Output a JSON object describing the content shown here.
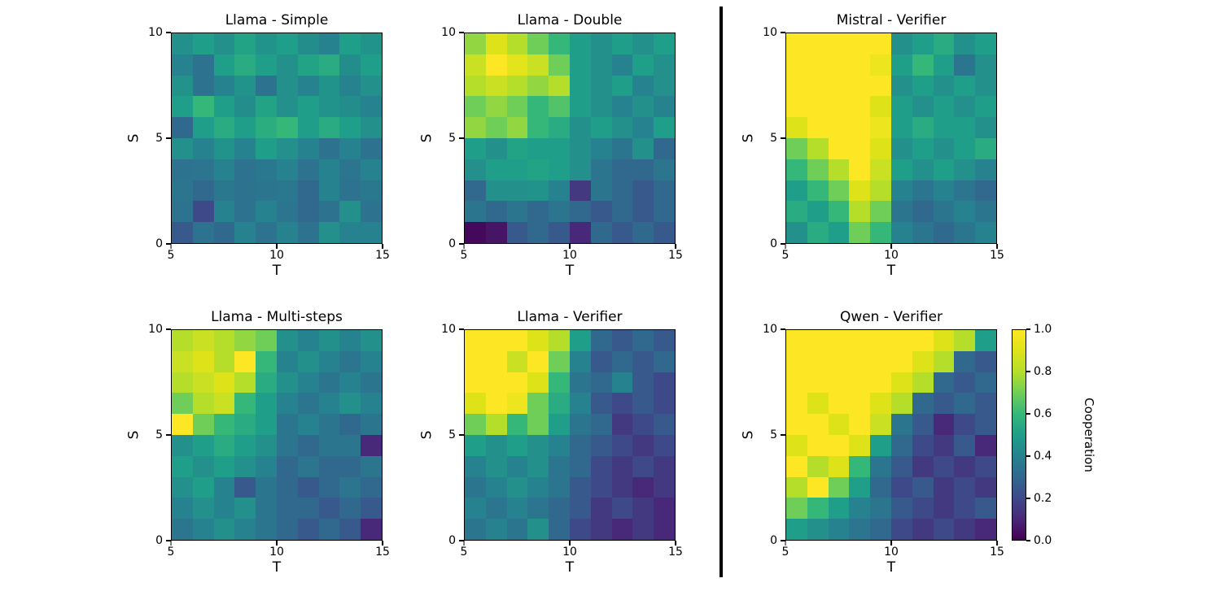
{
  "figure": {
    "background": "#ffffff",
    "divider_color": "#000000"
  },
  "axes": {
    "xlabel": "T",
    "ylabel": "S",
    "xticks": [
      "5",
      "10",
      "15"
    ],
    "yticks": [
      "10",
      "5",
      "0"
    ],
    "x_range": [
      5,
      15
    ],
    "y_range": [
      0,
      10
    ]
  },
  "colorbar": {
    "label": "Cooperation",
    "ticks": [
      "1.0",
      "0.8",
      "0.6",
      "0.4",
      "0.2",
      "0.0"
    ],
    "range": [
      0.0,
      1.0
    ],
    "colormap": "viridis",
    "stops": [
      [
        0.0,
        "#440154"
      ],
      [
        0.1,
        "#482878"
      ],
      [
        0.2,
        "#3e4989"
      ],
      [
        0.3,
        "#31688e"
      ],
      [
        0.4,
        "#26828e"
      ],
      [
        0.5,
        "#1f9e89"
      ],
      [
        0.6,
        "#35b779"
      ],
      [
        0.7,
        "#6ece58"
      ],
      [
        0.8,
        "#b5de2b"
      ],
      [
        0.9,
        "#dde318"
      ],
      [
        1.0,
        "#fde725"
      ]
    ]
  },
  "chart_meta": {
    "value_orientation": "rows listed top-to-bottom from S=10 to S=0; columns left-to-right from T=5 to T=15; values are Cooperation in [0,1]",
    "grid_size": [
      10,
      10
    ]
  },
  "chart_data": [
    {
      "type": "heatmap",
      "title": "Llama - Simple",
      "group": "left",
      "values": [
        [
          0.45,
          0.5,
          0.45,
          0.52,
          0.46,
          0.5,
          0.44,
          0.4,
          0.5,
          0.46
        ],
        [
          0.4,
          0.34,
          0.5,
          0.55,
          0.5,
          0.45,
          0.52,
          0.55,
          0.44,
          0.5
        ],
        [
          0.46,
          0.34,
          0.4,
          0.46,
          0.34,
          0.45,
          0.4,
          0.46,
          0.4,
          0.45
        ],
        [
          0.5,
          0.6,
          0.5,
          0.44,
          0.52,
          0.45,
          0.5,
          0.46,
          0.44,
          0.4
        ],
        [
          0.3,
          0.5,
          0.55,
          0.5,
          0.56,
          0.6,
          0.5,
          0.55,
          0.5,
          0.45
        ],
        [
          0.45,
          0.4,
          0.46,
          0.4,
          0.5,
          0.45,
          0.4,
          0.34,
          0.4,
          0.34
        ],
        [
          0.34,
          0.35,
          0.4,
          0.34,
          0.36,
          0.4,
          0.34,
          0.4,
          0.35,
          0.4
        ],
        [
          0.35,
          0.3,
          0.36,
          0.34,
          0.35,
          0.36,
          0.3,
          0.4,
          0.34,
          0.36
        ],
        [
          0.34,
          0.2,
          0.4,
          0.34,
          0.4,
          0.35,
          0.3,
          0.34,
          0.45,
          0.34
        ],
        [
          0.25,
          0.34,
          0.3,
          0.4,
          0.34,
          0.4,
          0.34,
          0.45,
          0.4,
          0.4
        ]
      ]
    },
    {
      "type": "heatmap",
      "title": "Llama - Double",
      "group": "left",
      "values": [
        [
          0.75,
          0.9,
          0.8,
          0.7,
          0.6,
          0.5,
          0.45,
          0.5,
          0.45,
          0.5
        ],
        [
          0.85,
          1.0,
          0.92,
          0.85,
          0.7,
          0.5,
          0.45,
          0.4,
          0.5,
          0.45
        ],
        [
          0.8,
          0.85,
          0.8,
          0.75,
          0.8,
          0.5,
          0.45,
          0.5,
          0.4,
          0.45
        ],
        [
          0.7,
          0.75,
          0.7,
          0.6,
          0.65,
          0.5,
          0.45,
          0.4,
          0.45,
          0.4
        ],
        [
          0.75,
          0.7,
          0.75,
          0.6,
          0.55,
          0.45,
          0.5,
          0.45,
          0.4,
          0.5
        ],
        [
          0.5,
          0.45,
          0.52,
          0.5,
          0.5,
          0.45,
          0.4,
          0.35,
          0.45,
          0.3
        ],
        [
          0.45,
          0.5,
          0.5,
          0.52,
          0.5,
          0.45,
          0.35,
          0.3,
          0.3,
          0.35
        ],
        [
          0.3,
          0.45,
          0.45,
          0.46,
          0.4,
          0.15,
          0.35,
          0.3,
          0.25,
          0.3
        ],
        [
          0.35,
          0.3,
          0.35,
          0.3,
          0.35,
          0.3,
          0.25,
          0.3,
          0.25,
          0.3
        ],
        [
          0.02,
          0.05,
          0.25,
          0.3,
          0.25,
          0.1,
          0.3,
          0.25,
          0.3,
          0.25
        ]
      ]
    },
    {
      "type": "heatmap",
      "title": "Llama - Multi-steps",
      "group": "left",
      "values": [
        [
          0.8,
          0.85,
          0.8,
          0.75,
          0.7,
          0.45,
          0.4,
          0.45,
          0.4,
          0.45
        ],
        [
          0.85,
          0.9,
          0.8,
          1.0,
          0.6,
          0.4,
          0.45,
          0.4,
          0.35,
          0.4
        ],
        [
          0.8,
          0.85,
          0.9,
          0.8,
          0.55,
          0.45,
          0.4,
          0.35,
          0.4,
          0.35
        ],
        [
          0.7,
          0.8,
          0.85,
          0.6,
          0.5,
          0.4,
          0.35,
          0.4,
          0.45,
          0.4
        ],
        [
          1.0,
          0.7,
          0.6,
          0.55,
          0.5,
          0.35,
          0.4,
          0.35,
          0.3,
          0.35
        ],
        [
          0.45,
          0.5,
          0.55,
          0.5,
          0.45,
          0.35,
          0.3,
          0.35,
          0.35,
          0.1
        ],
        [
          0.5,
          0.45,
          0.5,
          0.45,
          0.4,
          0.3,
          0.35,
          0.3,
          0.3,
          0.35
        ],
        [
          0.45,
          0.5,
          0.4,
          0.25,
          0.35,
          0.3,
          0.25,
          0.3,
          0.35,
          0.3
        ],
        [
          0.4,
          0.45,
          0.4,
          0.45,
          0.35,
          0.3,
          0.3,
          0.25,
          0.3,
          0.25
        ],
        [
          0.35,
          0.4,
          0.45,
          0.4,
          0.35,
          0.3,
          0.25,
          0.3,
          0.25,
          0.1
        ]
      ]
    },
    {
      "type": "heatmap",
      "title": "Llama - Verifier",
      "group": "left",
      "values": [
        [
          1.0,
          1.0,
          1.0,
          0.9,
          0.8,
          0.5,
          0.3,
          0.25,
          0.3,
          0.25
        ],
        [
          1.0,
          1.0,
          0.85,
          1.0,
          0.7,
          0.4,
          0.25,
          0.3,
          0.25,
          0.3
        ],
        [
          1.0,
          1.0,
          1.0,
          0.9,
          0.6,
          0.35,
          0.3,
          0.4,
          0.25,
          0.2
        ],
        [
          0.9,
          1.0,
          0.95,
          0.7,
          0.55,
          0.4,
          0.25,
          0.2,
          0.25,
          0.2
        ],
        [
          0.7,
          0.8,
          0.6,
          0.7,
          0.5,
          0.35,
          0.3,
          0.15,
          0.2,
          0.25
        ],
        [
          0.5,
          0.45,
          0.5,
          0.45,
          0.4,
          0.3,
          0.25,
          0.2,
          0.15,
          0.2
        ],
        [
          0.4,
          0.45,
          0.4,
          0.45,
          0.35,
          0.3,
          0.2,
          0.15,
          0.2,
          0.15
        ],
        [
          0.35,
          0.4,
          0.45,
          0.4,
          0.35,
          0.25,
          0.2,
          0.15,
          0.1,
          0.15
        ],
        [
          0.4,
          0.35,
          0.4,
          0.35,
          0.3,
          0.25,
          0.15,
          0.2,
          0.15,
          0.1
        ],
        [
          0.35,
          0.4,
          0.35,
          0.45,
          0.3,
          0.2,
          0.15,
          0.1,
          0.15,
          0.1
        ]
      ]
    },
    {
      "type": "heatmap",
      "title": "Mistral - Verifier",
      "group": "right",
      "values": [
        [
          1.0,
          1.0,
          1.0,
          1.0,
          1.0,
          0.45,
          0.5,
          0.55,
          0.45,
          0.5
        ],
        [
          1.0,
          1.0,
          1.0,
          1.0,
          0.95,
          0.5,
          0.6,
          0.5,
          0.35,
          0.45
        ],
        [
          1.0,
          1.0,
          1.0,
          1.0,
          1.0,
          0.45,
          0.5,
          0.45,
          0.5,
          0.45
        ],
        [
          1.0,
          1.0,
          1.0,
          1.0,
          0.9,
          0.5,
          0.45,
          0.5,
          0.45,
          0.5
        ],
        [
          0.9,
          1.0,
          1.0,
          1.0,
          0.95,
          0.5,
          0.55,
          0.5,
          0.5,
          0.45
        ],
        [
          0.7,
          0.8,
          1.0,
          1.0,
          0.9,
          0.45,
          0.5,
          0.45,
          0.5,
          0.55
        ],
        [
          0.6,
          0.7,
          0.8,
          1.0,
          0.85,
          0.5,
          0.45,
          0.5,
          0.45,
          0.4
        ],
        [
          0.5,
          0.6,
          0.7,
          0.9,
          0.8,
          0.4,
          0.35,
          0.4,
          0.35,
          0.3
        ],
        [
          0.55,
          0.5,
          0.6,
          0.8,
          0.7,
          0.35,
          0.3,
          0.35,
          0.4,
          0.35
        ],
        [
          0.45,
          0.55,
          0.5,
          0.7,
          0.6,
          0.4,
          0.35,
          0.3,
          0.35,
          0.4
        ]
      ]
    },
    {
      "type": "heatmap",
      "title": "Qwen - Verifier",
      "group": "right",
      "values": [
        [
          1.0,
          1.0,
          1.0,
          1.0,
          1.0,
          1.0,
          1.0,
          0.9,
          0.8,
          0.5
        ],
        [
          1.0,
          1.0,
          1.0,
          1.0,
          1.0,
          1.0,
          0.9,
          0.8,
          0.3,
          0.25
        ],
        [
          1.0,
          1.0,
          1.0,
          1.0,
          1.0,
          0.9,
          0.8,
          0.3,
          0.25,
          0.3
        ],
        [
          1.0,
          0.9,
          1.0,
          1.0,
          0.9,
          0.8,
          0.3,
          0.25,
          0.3,
          0.25
        ],
        [
          1.0,
          1.0,
          0.9,
          1.0,
          0.85,
          0.35,
          0.25,
          0.1,
          0.2,
          0.25
        ],
        [
          0.9,
          1.0,
          1.0,
          0.9,
          0.5,
          0.3,
          0.2,
          0.15,
          0.25,
          0.1
        ],
        [
          1.0,
          0.8,
          0.9,
          0.6,
          0.35,
          0.25,
          0.15,
          0.2,
          0.15,
          0.2
        ],
        [
          0.8,
          1.0,
          0.7,
          0.5,
          0.3,
          0.2,
          0.25,
          0.15,
          0.2,
          0.15
        ],
        [
          0.7,
          0.6,
          0.5,
          0.4,
          0.35,
          0.25,
          0.2,
          0.15,
          0.2,
          0.25
        ],
        [
          0.5,
          0.45,
          0.4,
          0.35,
          0.3,
          0.2,
          0.15,
          0.2,
          0.15,
          0.1
        ]
      ]
    }
  ]
}
